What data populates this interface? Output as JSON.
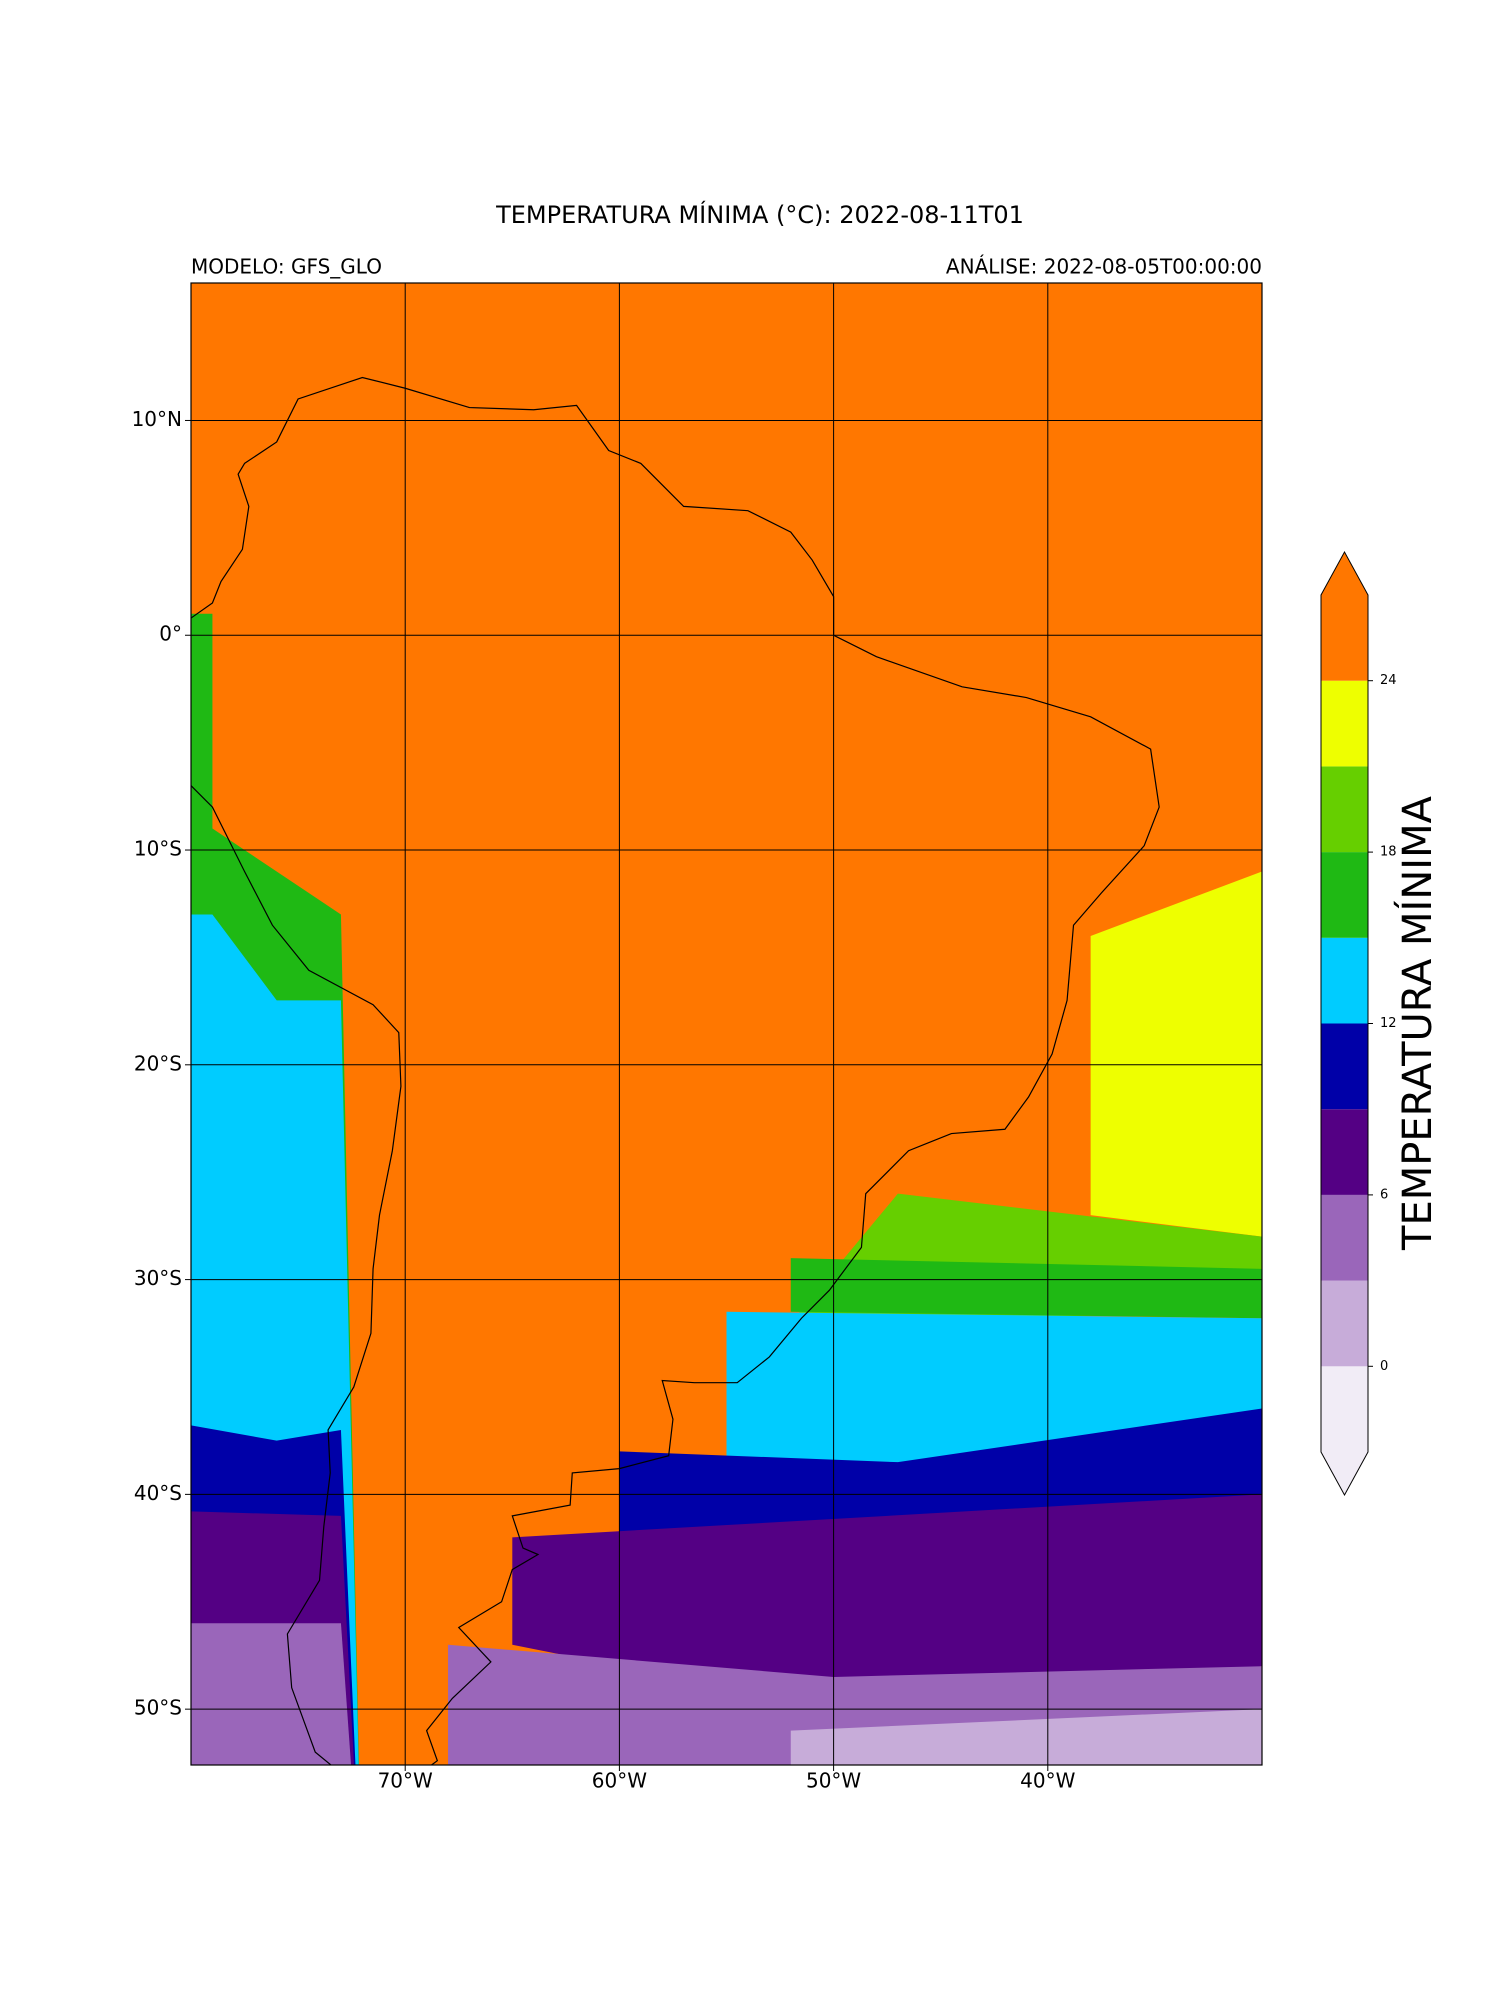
{
  "chart_data": {
    "type": "contour-map",
    "title": "TEMPERATURA MÍNIMA (°C): 2022-08-11T01",
    "subtitle_left": "MODELO: GFS_GLO",
    "subtitle_right": "ANÁLISE: 2022-08-05T00:00:00",
    "xlim": [
      -80,
      -30
    ],
    "ylim": [
      -52.6,
      16.4
    ],
    "xticks": [
      {
        "value": -70,
        "label": "70°W"
      },
      {
        "value": -60,
        "label": "60°W"
      },
      {
        "value": -50,
        "label": "50°W"
      },
      {
        "value": -40,
        "label": "40°W"
      }
    ],
    "yticks": [
      {
        "value": 10,
        "label": "10°N"
      },
      {
        "value": 0,
        "label": "0°"
      },
      {
        "value": -10,
        "label": "10°S"
      },
      {
        "value": -20,
        "label": "20°S"
      },
      {
        "value": -30,
        "label": "30°S"
      },
      {
        "value": -40,
        "label": "40°S"
      },
      {
        "value": -50,
        "label": "50°S"
      }
    ],
    "grid": true,
    "colorbar": {
      "label": "TEMPERATURA MÍNIMA",
      "levels": [
        -3,
        0,
        3,
        6,
        9,
        12,
        15,
        18,
        21,
        24,
        27
      ],
      "colors": [
        "#f1ecf6",
        "#c7acd9",
        "#9a66ba",
        "#540084",
        "#0000a8",
        "#00ccff",
        "#1fb914",
        "#66cf00",
        "#eeff00",
        "#ff7700"
      ],
      "extend": "both",
      "ticks": [
        0,
        6,
        12,
        18,
        24
      ]
    }
  }
}
